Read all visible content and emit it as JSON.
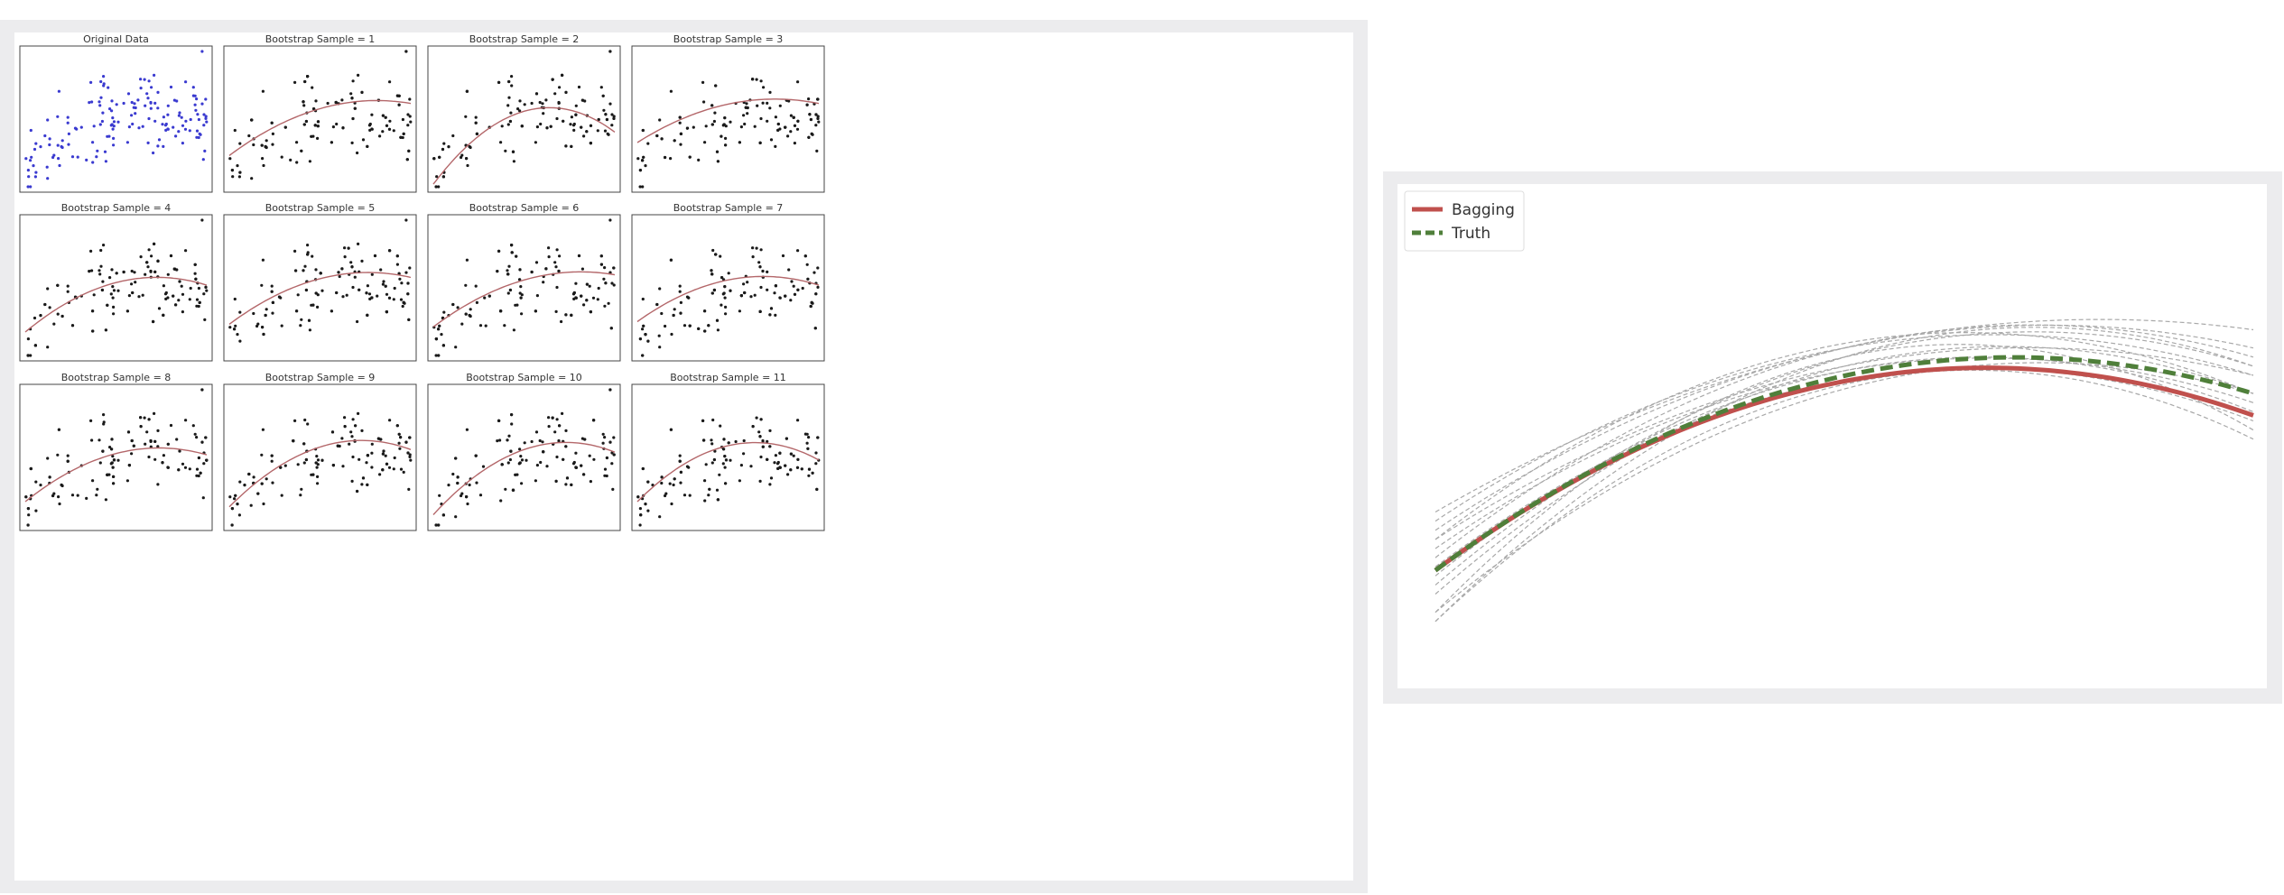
{
  "colors": {
    "original_points": "#3a3ad0",
    "sample_points": "#1a1a1a",
    "fit_line": "#b4676a",
    "bagging": "#c0504d",
    "truth": "#4f7f3a",
    "bootstrap_lines": "#a8a8a8",
    "panel_border": "#444444",
    "background_frame": "#ececee"
  },
  "chart_data": [
    {
      "type": "scatter",
      "layout": "grid 3x4",
      "xlim": [
        0,
        1
      ],
      "ylim": [
        -1.2,
        1.4
      ],
      "panels": [
        {
          "title": "Original Data",
          "points_color": "original_points",
          "fit": null
        },
        {
          "title": "Bootstrap Sample = 1",
          "points_color": "sample_points",
          "fit": [
            -0.6,
            2.6,
            -1.6
          ]
        },
        {
          "title": "Bootstrap Sample = 2",
          "points_color": "sample_points",
          "fit": [
            -1.15,
            4.6,
            -3.6
          ]
        },
        {
          "title": "Bootstrap Sample = 3",
          "points_color": "sample_points",
          "fit": [
            -0.35,
            2.2,
            -1.45
          ]
        },
        {
          "title": "Bootstrap Sample = 4",
          "points_color": "sample_points",
          "fit": [
            -0.75,
            2.9,
            -2.0
          ]
        },
        {
          "title": "Bootstrap Sample = 5",
          "points_color": "sample_points",
          "fit": [
            -0.6,
            2.6,
            -1.7
          ]
        },
        {
          "title": "Bootstrap Sample = 6",
          "points_color": "sample_points",
          "fit": [
            -0.65,
            2.6,
            -1.6
          ]
        },
        {
          "title": "Bootstrap Sample = 7",
          "points_color": "sample_points",
          "fit": [
            -0.55,
            2.5,
            -1.8
          ]
        },
        {
          "title": "Bootstrap Sample = 8",
          "points_color": "sample_points",
          "fit": [
            -0.75,
            2.8,
            -1.9
          ]
        },
        {
          "title": "Bootstrap Sample = 9",
          "points_color": "sample_points",
          "fit": [
            -0.85,
            3.5,
            -2.4
          ]
        },
        {
          "title": "Bootstrap Sample = 10",
          "points_color": "sample_points",
          "fit": [
            -1.0,
            3.8,
            -2.6
          ]
        },
        {
          "title": "Bootstrap Sample = 11",
          "points_color": "sample_points",
          "fit": [
            -0.75,
            3.5,
            -2.7
          ]
        }
      ],
      "grid": false
    },
    {
      "type": "line",
      "xlim": [
        0,
        1
      ],
      "ylim": [
        -1.3,
        1.1
      ],
      "grid": false,
      "legend_position": "top-left",
      "series": [
        {
          "name": "Bagging",
          "style": "solid",
          "color": "bagging",
          "coef": [
            -0.92,
            3.3,
            -2.45
          ]
        },
        {
          "name": "Truth",
          "style": "dashed",
          "color": "truth",
          "coef": [
            -0.92,
            3.3,
            -2.33
          ]
        }
      ],
      "bootstrap_fits": [
        [
          -1.15,
          4.6,
          -3.6
        ],
        [
          -0.6,
          2.6,
          -1.6
        ],
        [
          -0.75,
          2.9,
          -2.0
        ],
        [
          -1.0,
          3.8,
          -2.6
        ],
        [
          -0.85,
          3.5,
          -2.4
        ],
        [
          -0.75,
          3.5,
          -2.7
        ],
        [
          -0.8,
          3.1,
          -2.3
        ],
        [
          -0.9,
          3.3,
          -2.5
        ],
        [
          -1.2,
          4.2,
          -3.2
        ],
        [
          -1.05,
          3.9,
          -2.8
        ],
        [
          -0.65,
          3.0,
          -2.2
        ],
        [
          -1.2,
          4.4,
          -3.0
        ],
        [
          -0.7,
          3.0,
          -2.0
        ],
        [
          -0.95,
          3.6,
          -2.7
        ],
        [
          -1.15,
          3.7,
          -2.5
        ]
      ]
    }
  ]
}
